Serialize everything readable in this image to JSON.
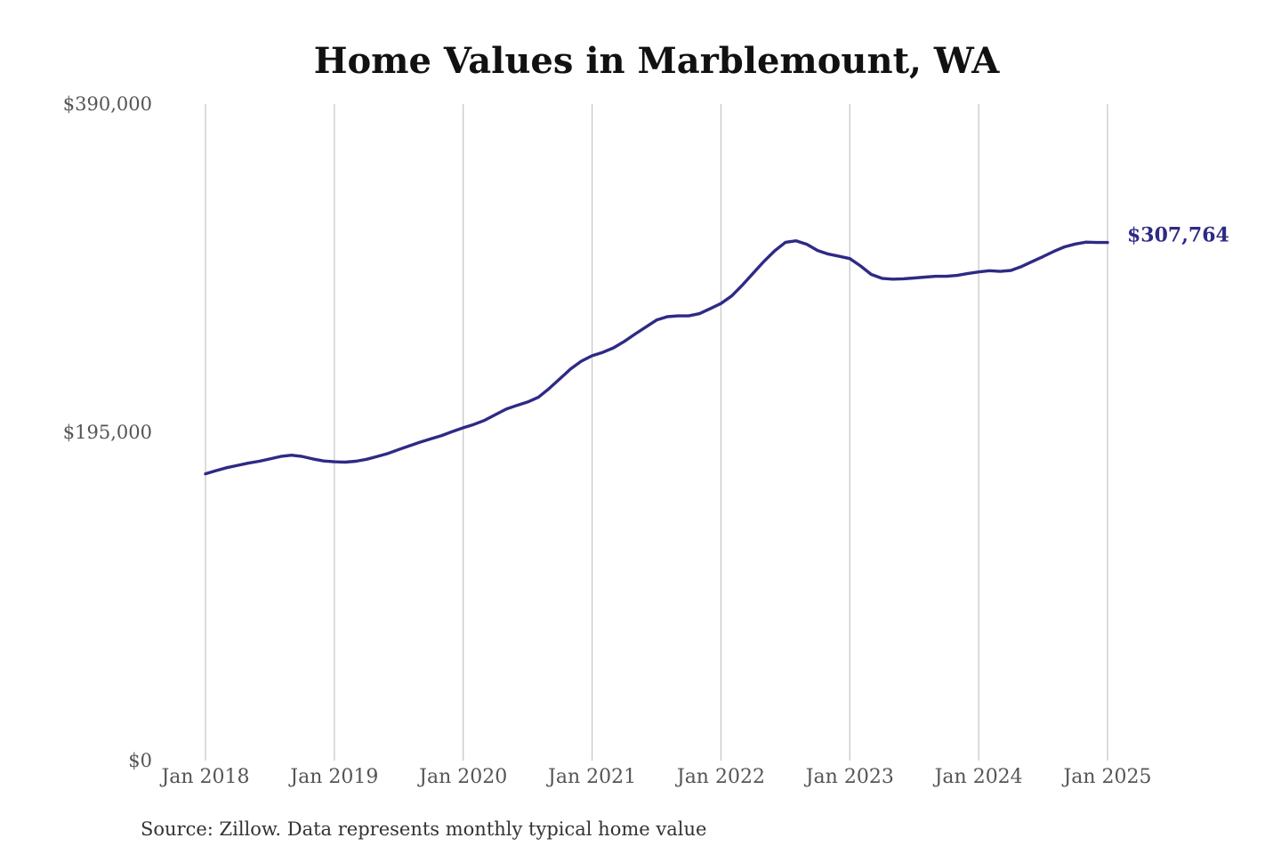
{
  "chart_data": {
    "type": "line",
    "title": "Home Values in Marblemount, WA",
    "xlabel": "",
    "ylabel": "",
    "ylim": [
      0,
      390000
    ],
    "xlim": [
      "2018-01",
      "2025-01"
    ],
    "y_ticks": [
      "$0",
      "$195,000",
      "$390,000"
    ],
    "y_tick_values": [
      0,
      195000,
      390000
    ],
    "x_ticks": [
      "Jan 2018",
      "Jan 2019",
      "Jan 2020",
      "Jan 2021",
      "Jan 2022",
      "Jan 2023",
      "Jan 2024",
      "Jan 2025"
    ],
    "x_tick_values": [
      "2018-01",
      "2019-01",
      "2020-01",
      "2021-01",
      "2022-01",
      "2023-01",
      "2024-01",
      "2025-01"
    ],
    "grid": "vertical lines at x ticks",
    "end_label": "$307,764",
    "source": "Source: Zillow. Data represents monthly typical home value",
    "colors": {
      "line": "#2e2a85",
      "grid": "#c4c4c4",
      "title": "#111111",
      "tick": "#555555"
    },
    "series": [
      {
        "x": [
          "2018-01",
          "2018-02",
          "2018-03",
          "2018-04",
          "2018-05",
          "2018-06",
          "2018-07",
          "2018-08",
          "2018-09",
          "2018-10",
          "2018-11",
          "2018-12",
          "2019-01",
          "2019-02",
          "2019-03",
          "2019-04",
          "2019-05",
          "2019-06",
          "2019-07",
          "2019-08",
          "2019-09",
          "2019-10",
          "2019-11",
          "2019-12",
          "2020-01",
          "2020-02",
          "2020-03",
          "2020-04",
          "2020-05",
          "2020-06",
          "2020-07",
          "2020-08",
          "2020-09",
          "2020-10",
          "2020-11",
          "2020-12",
          "2021-01",
          "2021-02",
          "2021-03",
          "2021-04",
          "2021-05",
          "2021-06",
          "2021-07",
          "2021-08",
          "2021-09",
          "2021-10",
          "2021-11",
          "2021-12",
          "2022-01",
          "2022-02",
          "2022-03",
          "2022-04",
          "2022-05",
          "2022-06",
          "2022-07",
          "2022-08",
          "2022-09",
          "2022-10",
          "2022-11",
          "2022-12",
          "2023-01",
          "2023-02",
          "2023-03",
          "2023-04",
          "2023-05",
          "2023-06",
          "2023-07",
          "2023-08",
          "2023-09",
          "2023-10",
          "2023-11",
          "2023-12",
          "2024-01",
          "2024-02",
          "2024-03",
          "2024-04",
          "2024-05",
          "2024-06",
          "2024-07",
          "2024-08",
          "2024-09",
          "2024-10",
          "2024-11",
          "2024-12",
          "2025-01"
        ],
        "values": [
          170400,
          172300,
          174000,
          175400,
          176700,
          177800,
          179200,
          180700,
          181400,
          180700,
          179200,
          178000,
          177500,
          177300,
          177800,
          179000,
          180700,
          182500,
          184800,
          187000,
          189200,
          191200,
          193100,
          195500,
          197700,
          199700,
          202200,
          205500,
          208800,
          211000,
          213000,
          215800,
          221000,
          226800,
          232600,
          237300,
          240500,
          242500,
          245200,
          249000,
          253400,
          257500,
          261700,
          263700,
          264200,
          264200,
          265500,
          268500,
          271500,
          276000,
          282500,
          289500,
          296500,
          302800,
          307900,
          308800,
          306700,
          303000,
          300900,
          299600,
          298200,
          293800,
          288800,
          286500,
          286000,
          286200,
          286700,
          287200,
          287700,
          287700,
          288200,
          289400,
          290300,
          291000,
          290600,
          291200,
          293500,
          296500,
          299400,
          302500,
          305200,
          306900,
          308000,
          307764,
          307764
        ]
      }
    ]
  }
}
